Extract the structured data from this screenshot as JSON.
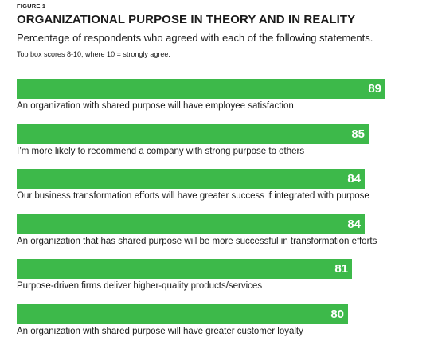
{
  "header": {
    "figure_label": "FIGURE 1",
    "title": "ORGANIZATIONAL PURPOSE IN THEORY AND IN REALITY",
    "subtitle": "Percentage of respondents who agreed with each of the following statements.",
    "note": "Top box scores 8-10, where 10 = strongly agree."
  },
  "colors": {
    "bar": "#3db94a",
    "value_text": "#ffffff"
  },
  "chart_data": {
    "type": "bar",
    "orientation": "horizontal",
    "categories": [
      "An organization with shared purpose will have employee satisfaction",
      "I’m more likely to recommend a company with strong purpose to others",
      "Our business transformation efforts will have greater success if integrated with purpose",
      "An organization that has shared purpose will be more successful in transformation efforts",
      "Purpose-driven firms deliver higher-quality products/services",
      "An organization with shared purpose will have greater customer loyalty"
    ],
    "values": [
      89,
      85,
      84,
      84,
      81,
      80
    ],
    "data_labels": [
      "89",
      "85",
      "84",
      "84",
      "81",
      "80"
    ],
    "title": "ORGANIZATIONAL PURPOSE IN THEORY AND IN REALITY",
    "xlabel": "",
    "ylabel": "",
    "grid": false,
    "legend": "none"
  }
}
